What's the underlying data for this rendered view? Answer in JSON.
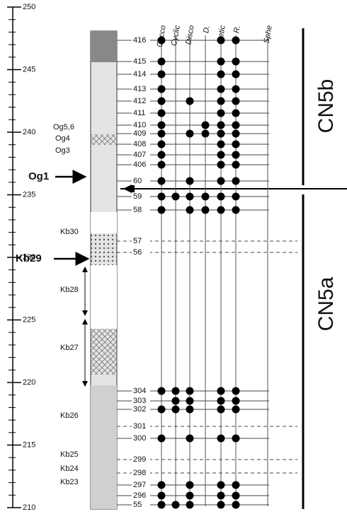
{
  "depth_axis": {
    "ticks": [
      250,
      245,
      240,
      235,
      230,
      225,
      220,
      215,
      210
    ]
  },
  "taxa": [
    "Cocco",
    "Cyclic",
    "Disco",
    "D.",
    "Retic",
    "R.",
    "Sphe"
  ],
  "samples": [
    "416",
    "415",
    "414",
    "413",
    "412",
    "411",
    "410",
    "409",
    "408",
    "407",
    "406",
    "60",
    "59",
    "58",
    "57",
    "56",
    "304",
    "303",
    "302",
    "301",
    "300",
    "299",
    "298",
    "297",
    "296",
    "55"
  ],
  "horizons": [
    "Og5,6",
    "Og4",
    "Og3",
    "Og1",
    "Kb30",
    "Kb29",
    "Kb28",
    "Kb27",
    "Kb26",
    "Kb25",
    "Kb24",
    "Kb23"
  ],
  "zones": [
    "CN5b",
    "CN5a"
  ]
}
